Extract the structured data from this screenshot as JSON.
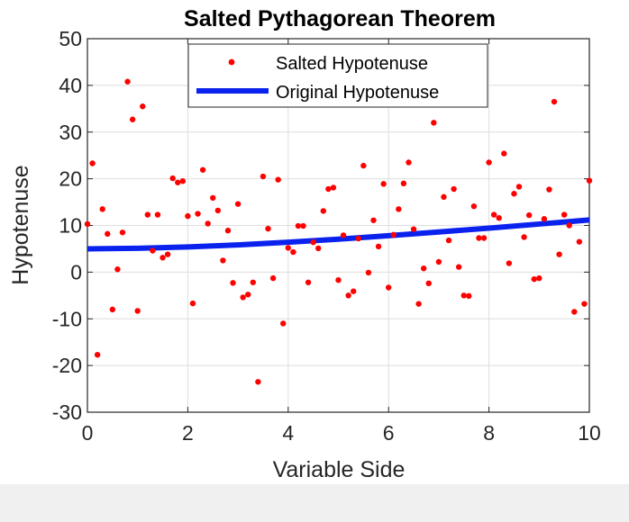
{
  "chart_data": {
    "type": "scatter",
    "title": "Salted Pythagorean Theorem",
    "xlabel": "Variable Side",
    "ylabel": "Hypotenuse",
    "xlim": [
      0,
      10
    ],
    "ylim": [
      -30,
      50
    ],
    "xticks": [
      "0",
      "2",
      "4",
      "6",
      "8",
      "10"
    ],
    "yticks": [
      "50",
      "40",
      "30",
      "20",
      "10",
      "0",
      "-10",
      "-20",
      "-30"
    ],
    "grid": true,
    "legend_position": "top",
    "series": [
      {
        "name": "Salted Hypotenuse",
        "kind": "scatter",
        "color": "#ff0000",
        "x": [
          0.0,
          0.1,
          0.2,
          0.3,
          0.4,
          0.5,
          0.6,
          0.7,
          0.8,
          0.9,
          1.0,
          1.1,
          1.2,
          1.3,
          1.4,
          1.5,
          1.6,
          1.7,
          1.8,
          1.9,
          2.0,
          2.1,
          2.2,
          2.3,
          2.4,
          2.5,
          2.6,
          2.7,
          2.8,
          2.9,
          3.0,
          3.1,
          3.2,
          3.3,
          3.4,
          3.5,
          3.6,
          3.7,
          3.8,
          3.9,
          4.0,
          4.1,
          4.2,
          4.3,
          4.4,
          4.5,
          4.6,
          4.7,
          4.8,
          4.9,
          5.0,
          5.1,
          5.2,
          5.3,
          5.4,
          5.5,
          5.6,
          5.7,
          5.8,
          5.9,
          6.0,
          6.1,
          6.2,
          6.3,
          6.4,
          6.5,
          6.6,
          6.7,
          6.8,
          6.9,
          7.0,
          7.1,
          7.2,
          7.3,
          7.4,
          7.5,
          7.6,
          7.7,
          7.8,
          7.9,
          8.0,
          8.1,
          8.2,
          8.3,
          8.4,
          8.5,
          8.6,
          8.7,
          8.8,
          8.9,
          9.0,
          9.1,
          9.2,
          9.3,
          9.4,
          9.5,
          9.6,
          9.7,
          9.8,
          9.9,
          10.0
        ],
        "y": [
          10.3,
          23.3,
          -17.7,
          13.5,
          8.2,
          -8.0,
          0.6,
          8.5,
          40.8,
          32.7,
          -8.3,
          35.5,
          12.3,
          4.6,
          12.3,
          3.1,
          3.8,
          20.1,
          19.2,
          19.5,
          12.0,
          -6.7,
          12.5,
          21.9,
          10.4,
          15.9,
          13.2,
          2.5,
          8.9,
          -2.3,
          14.6,
          -5.4,
          -4.8,
          -2.2,
          -23.5,
          20.5,
          9.3,
          -1.3,
          19.8,
          -11.0,
          5.2,
          4.3,
          9.9,
          9.9,
          -2.2,
          6.4,
          5.1,
          13.1,
          17.8,
          18.1,
          -1.7,
          7.9,
          -5.0,
          -4.1,
          7.2,
          22.8,
          -0.1,
          11.1,
          5.5,
          18.9,
          -3.3,
          8.0,
          13.5,
          19.0,
          23.5,
          9.2,
          -6.8,
          0.8,
          -2.4,
          32.0,
          2.2,
          16.1,
          6.8,
          17.8,
          1.1,
          -5.0,
          -5.1,
          14.1,
          7.3,
          7.3,
          23.5,
          12.3,
          11.6,
          25.4,
          1.9,
          16.8,
          18.3,
          7.5,
          12.2,
          -1.5,
          -1.3,
          11.4,
          17.7,
          36.5,
          3.8,
          12.3,
          10.0,
          -8.5,
          6.5,
          -6.8,
          19.6
        ]
      },
      {
        "name": "Original Hypotenuse",
        "kind": "line",
        "color": "#0a22ee",
        "x": [
          0,
          1,
          2,
          3,
          4,
          5,
          6,
          7,
          8,
          9,
          10
        ],
        "y": [
          5.0,
          5.1,
          5.39,
          5.83,
          6.4,
          7.07,
          7.81,
          8.6,
          9.43,
          10.3,
          11.18
        ]
      }
    ]
  }
}
